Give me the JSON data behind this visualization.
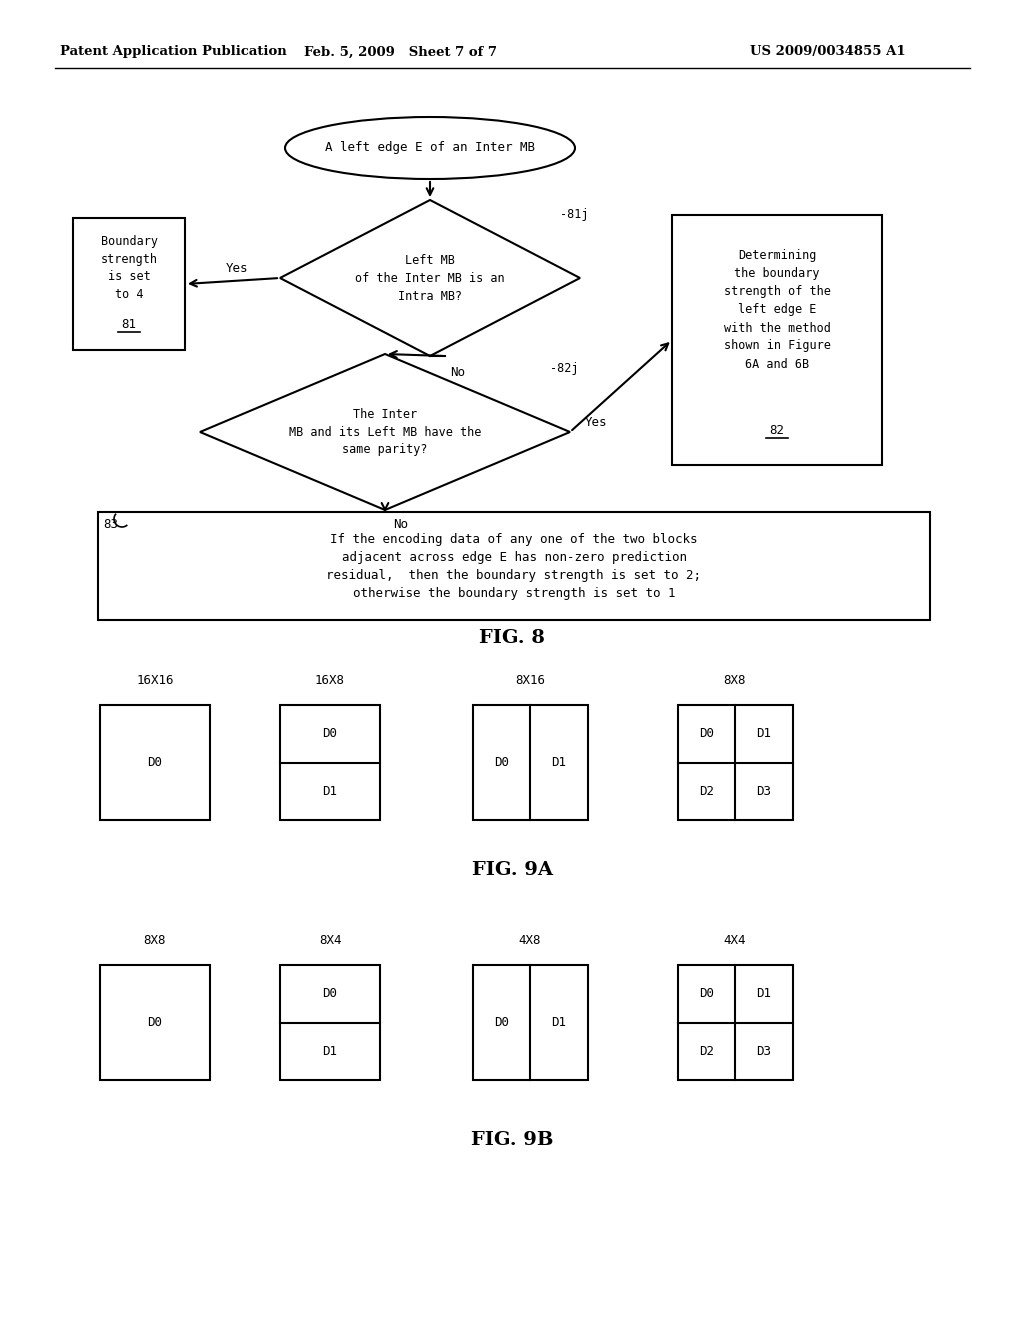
{
  "header_left": "Patent Application Publication",
  "header_mid": "Feb. 5, 2009   Sheet 7 of 7",
  "header_right": "US 2009/0034855 A1",
  "fig8_label": "FIG. 8",
  "fig9a_label": "FIG. 9A",
  "fig9b_label": "FIG. 9B",
  "ellipse_text": "A left edge E of an Inter MB",
  "diamond1_text": "Left MB\nof the Inter MB is an\nIntra MB?",
  "diamond1_label": "-81j",
  "diamond2_text": "The Inter\nMB and its Left MB have the\nsame parity?",
  "diamond2_label": "-82j",
  "box_bottom_text": "If the encoding data of any one of the two blocks\nadjacent across edge E has non-zero prediction\nresidual,  then the boundary strength is set to 2;\notherwise the boundary strength is set to 1",
  "label_83": "83",
  "yes1": "Yes",
  "no1": "No",
  "yes2": "Yes",
  "no2": "No",
  "fig9a_titles": [
    "16X16",
    "16X8",
    "8X16",
    "8X8"
  ],
  "fig9b_titles": [
    "8X8",
    "8X4",
    "4X8",
    "4X4"
  ],
  "bg_color": "#ffffff",
  "line_color": "#000000",
  "font_color": "#000000"
}
